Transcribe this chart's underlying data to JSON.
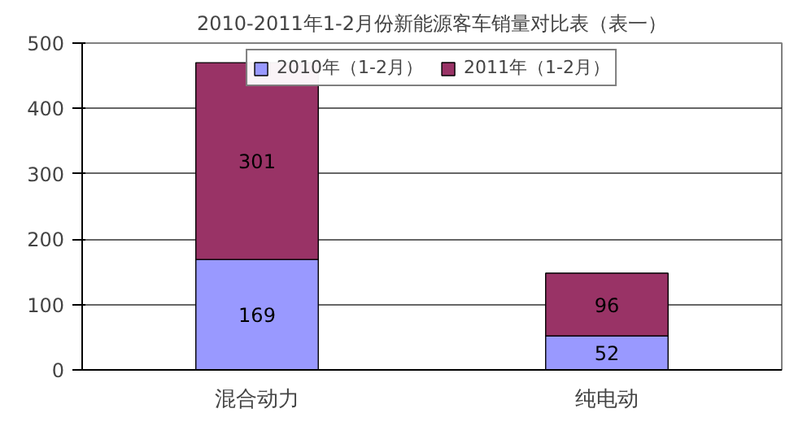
{
  "chart_data": {
    "type": "bar",
    "title": "2010-2011年1-2月份新能源客车销量对比表（表一）",
    "categories": [
      "混合动力",
      "纯电动"
    ],
    "stacked": true,
    "series": [
      {
        "name": "2010年（1-2月）",
        "color": "#9999ff",
        "values": [
          169,
          52
        ]
      },
      {
        "name": "2011年（1-2月）",
        "color": "#993366",
        "values": [
          301,
          96
        ]
      }
    ],
    "ylim": [
      0,
      500
    ],
    "yticks": [
      0,
      100,
      200,
      300,
      400,
      500
    ],
    "grid": "y",
    "legend": "top",
    "data_labels": true
  }
}
